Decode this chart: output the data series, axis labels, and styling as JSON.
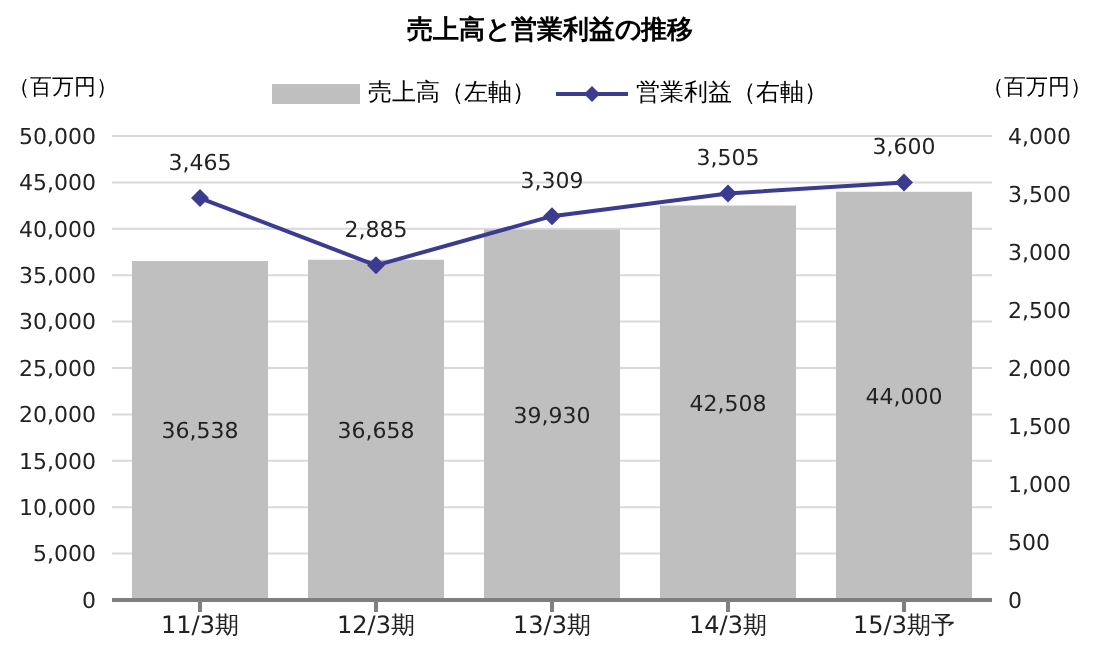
{
  "chart_data": {
    "type": "bar",
    "title": "売上高と営業利益の推移",
    "ylabel": "（百万円）",
    "y2label": "（百万円）",
    "categories": [
      "11/3期",
      "12/3期",
      "13/3期",
      "14/3期",
      "15/3期予"
    ],
    "series": [
      {
        "name": "売上高（左軸）",
        "color": "#bfbfbf",
        "values": [
          36538,
          36658,
          39930,
          42508,
          44000
        ],
        "value_labels": [
          "36,538",
          "36,658",
          "39,930",
          "42,508",
          "44,000"
        ]
      },
      {
        "name": "営業利益（右軸）",
        "type": "line",
        "axis": "y2",
        "color": "#3b3b8f",
        "marker": "diamond",
        "values": [
          3465,
          2885,
          3309,
          3505,
          3600
        ],
        "value_labels": [
          "3,465",
          "2,885",
          "3,309",
          "3,505",
          "3,600"
        ]
      }
    ],
    "ylim": [
      0,
      50000
    ],
    "yticks": [
      0,
      {
        "value": 5000,
        "label": "5,000"
      },
      {
        "value": 10000,
        "label": "10,000"
      },
      {
        "value": 15000,
        "label": "15,000"
      },
      {
        "value": 20000,
        "label": "20,000"
      },
      {
        "value": 25000,
        "label": "25,000"
      },
      {
        "value": 30000,
        "label": "30,000"
      },
      {
        "value": 35000,
        "label": "35,000"
      },
      {
        "value": 40000,
        "label": "40,000"
      },
      {
        "value": 45000,
        "label": "45,000"
      },
      {
        "value": 50000,
        "label": "50,000"
      }
    ],
    "y2lim": [
      0,
      4000
    ],
    "y2ticks": [
      0,
      500,
      {
        "value": 1000,
        "label": "1,000"
      },
      {
        "value": 1500,
        "label": "1,500"
      },
      {
        "value": 2000,
        "label": "2,000"
      },
      {
        "value": 2500,
        "label": "2,500"
      },
      {
        "value": 3000,
        "label": "3,000"
      },
      {
        "value": 3500,
        "label": "3,500"
      },
      {
        "value": 4000,
        "label": "4,000"
      }
    ],
    "grid": "y",
    "legend": "top"
  }
}
